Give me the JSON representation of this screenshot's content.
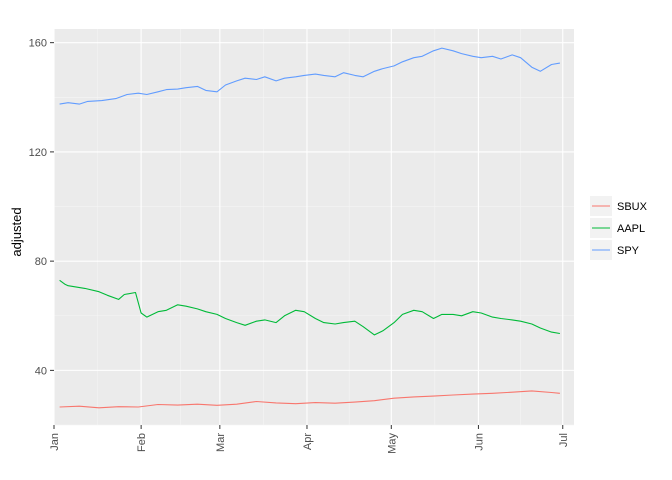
{
  "chart_data": {
    "type": "line",
    "title": "",
    "xlabel": "",
    "ylabel": "adjusted",
    "xlim": [
      "2017-01-01",
      "2017-07-05"
    ],
    "ylim": [
      20,
      165
    ],
    "x_ticks": [
      {
        "date": "2017-01-01",
        "label": "Jan"
      },
      {
        "date": "2017-02-01",
        "label": "Feb"
      },
      {
        "date": "2017-03-01",
        "label": "Mar"
      },
      {
        "date": "2017-04-01",
        "label": "Apr"
      },
      {
        "date": "2017-05-01",
        "label": "May"
      },
      {
        "date": "2017-06-01",
        "label": "Jun"
      },
      {
        "date": "2017-07-01",
        "label": "Jul"
      }
    ],
    "y_ticks": [
      40,
      80,
      120,
      160
    ],
    "grid": true,
    "legend_position": "right",
    "series": [
      {
        "name": "SBUX",
        "color": "#F8766D",
        "points": [
          [
            "2017-01-03",
            26.6
          ],
          [
            "2017-01-10",
            26.9
          ],
          [
            "2017-01-17",
            26.3
          ],
          [
            "2017-01-24",
            26.7
          ],
          [
            "2017-01-31",
            26.6
          ],
          [
            "2017-02-07",
            27.5
          ],
          [
            "2017-02-14",
            27.3
          ],
          [
            "2017-02-21",
            27.6
          ],
          [
            "2017-02-28",
            27.2
          ],
          [
            "2017-03-07",
            27.6
          ],
          [
            "2017-03-14",
            28.6
          ],
          [
            "2017-03-21",
            28.1
          ],
          [
            "2017-03-28",
            27.8
          ],
          [
            "2017-04-04",
            28.2
          ],
          [
            "2017-04-11",
            28.0
          ],
          [
            "2017-04-18",
            28.4
          ],
          [
            "2017-04-25",
            28.9
          ],
          [
            "2017-05-02",
            29.8
          ],
          [
            "2017-05-09",
            30.3
          ],
          [
            "2017-05-16",
            30.6
          ],
          [
            "2017-05-23",
            31.0
          ],
          [
            "2017-05-30",
            31.3
          ],
          [
            "2017-06-06",
            31.6
          ],
          [
            "2017-06-13",
            32.0
          ],
          [
            "2017-06-20",
            32.5
          ],
          [
            "2017-06-27",
            31.9
          ],
          [
            "2017-06-30",
            31.6
          ]
        ]
      },
      {
        "name": "AAPL",
        "color": "#00BA38",
        "points": [
          [
            "2017-01-03",
            73.0
          ],
          [
            "2017-01-05",
            71.5
          ],
          [
            "2017-01-06",
            71.0
          ],
          [
            "2017-01-09",
            70.5
          ],
          [
            "2017-01-12",
            70.0
          ],
          [
            "2017-01-17",
            68.8
          ],
          [
            "2017-01-20",
            67.5
          ],
          [
            "2017-01-24",
            66.0
          ],
          [
            "2017-01-26",
            67.8
          ],
          [
            "2017-01-30",
            68.5
          ],
          [
            "2017-02-01",
            61.0
          ],
          [
            "2017-02-03",
            59.5
          ],
          [
            "2017-02-07",
            61.5
          ],
          [
            "2017-02-10",
            62.0
          ],
          [
            "2017-02-14",
            64.0
          ],
          [
            "2017-02-17",
            63.5
          ],
          [
            "2017-02-21",
            62.5
          ],
          [
            "2017-02-24",
            61.5
          ],
          [
            "2017-02-28",
            60.5
          ],
          [
            "2017-03-03",
            59.0
          ],
          [
            "2017-03-07",
            57.5
          ],
          [
            "2017-03-10",
            56.5
          ],
          [
            "2017-03-14",
            58.0
          ],
          [
            "2017-03-17",
            58.5
          ],
          [
            "2017-03-21",
            57.5
          ],
          [
            "2017-03-24",
            60.0
          ],
          [
            "2017-03-28",
            62.0
          ],
          [
            "2017-03-31",
            61.5
          ],
          [
            "2017-04-04",
            59.0
          ],
          [
            "2017-04-07",
            57.5
          ],
          [
            "2017-04-11",
            57.0
          ],
          [
            "2017-04-14",
            57.5
          ],
          [
            "2017-04-18",
            58.0
          ],
          [
            "2017-04-21",
            56.0
          ],
          [
            "2017-04-25",
            53.0
          ],
          [
            "2017-04-28",
            54.5
          ],
          [
            "2017-05-02",
            57.5
          ],
          [
            "2017-05-05",
            60.5
          ],
          [
            "2017-05-09",
            62.0
          ],
          [
            "2017-05-12",
            61.5
          ],
          [
            "2017-05-16",
            59.0
          ],
          [
            "2017-05-19",
            60.5
          ],
          [
            "2017-05-23",
            60.5
          ],
          [
            "2017-05-26",
            60.0
          ],
          [
            "2017-05-30",
            61.5
          ],
          [
            "2017-06-02",
            61.0
          ],
          [
            "2017-06-06",
            59.5
          ],
          [
            "2017-06-09",
            59.0
          ],
          [
            "2017-06-13",
            58.5
          ],
          [
            "2017-06-16",
            58.0
          ],
          [
            "2017-06-20",
            57.0
          ],
          [
            "2017-06-23",
            55.5
          ],
          [
            "2017-06-27",
            54.0
          ],
          [
            "2017-06-30",
            53.5
          ]
        ]
      },
      {
        "name": "SPY",
        "color": "#619CFF",
        "points": [
          [
            "2017-01-03",
            137.5
          ],
          [
            "2017-01-06",
            138.0
          ],
          [
            "2017-01-10",
            137.5
          ],
          [
            "2017-01-13",
            138.5
          ],
          [
            "2017-01-18",
            138.8
          ],
          [
            "2017-01-23",
            139.5
          ],
          [
            "2017-01-27",
            141.0
          ],
          [
            "2017-01-31",
            141.5
          ],
          [
            "2017-02-03",
            141.0
          ],
          [
            "2017-02-07",
            142.0
          ],
          [
            "2017-02-10",
            142.8
          ],
          [
            "2017-02-14",
            143.0
          ],
          [
            "2017-02-17",
            143.5
          ],
          [
            "2017-02-21",
            144.0
          ],
          [
            "2017-02-24",
            142.5
          ],
          [
            "2017-02-28",
            142.0
          ],
          [
            "2017-03-03",
            144.5
          ],
          [
            "2017-03-07",
            146.0
          ],
          [
            "2017-03-10",
            147.0
          ],
          [
            "2017-03-14",
            146.5
          ],
          [
            "2017-03-17",
            147.5
          ],
          [
            "2017-03-21",
            146.0
          ],
          [
            "2017-03-24",
            147.0
          ],
          [
            "2017-03-28",
            147.5
          ],
          [
            "2017-03-31",
            148.0
          ],
          [
            "2017-04-04",
            148.5
          ],
          [
            "2017-04-07",
            148.0
          ],
          [
            "2017-04-11",
            147.5
          ],
          [
            "2017-04-14",
            149.0
          ],
          [
            "2017-04-18",
            148.0
          ],
          [
            "2017-04-21",
            147.5
          ],
          [
            "2017-04-25",
            149.5
          ],
          [
            "2017-04-28",
            150.5
          ],
          [
            "2017-05-02",
            151.5
          ],
          [
            "2017-05-05",
            153.0
          ],
          [
            "2017-05-09",
            154.5
          ],
          [
            "2017-05-12",
            155.0
          ],
          [
            "2017-05-16",
            157.0
          ],
          [
            "2017-05-19",
            158.0
          ],
          [
            "2017-05-23",
            157.0
          ],
          [
            "2017-05-26",
            156.0
          ],
          [
            "2017-05-30",
            155.0
          ],
          [
            "2017-06-02",
            154.5
          ],
          [
            "2017-06-06",
            155.0
          ],
          [
            "2017-06-09",
            154.0
          ],
          [
            "2017-06-13",
            155.5
          ],
          [
            "2017-06-16",
            154.5
          ],
          [
            "2017-06-20",
            151.0
          ],
          [
            "2017-06-23",
            149.5
          ],
          [
            "2017-06-27",
            152.0
          ],
          [
            "2017-06-30",
            152.5
          ]
        ]
      }
    ]
  }
}
